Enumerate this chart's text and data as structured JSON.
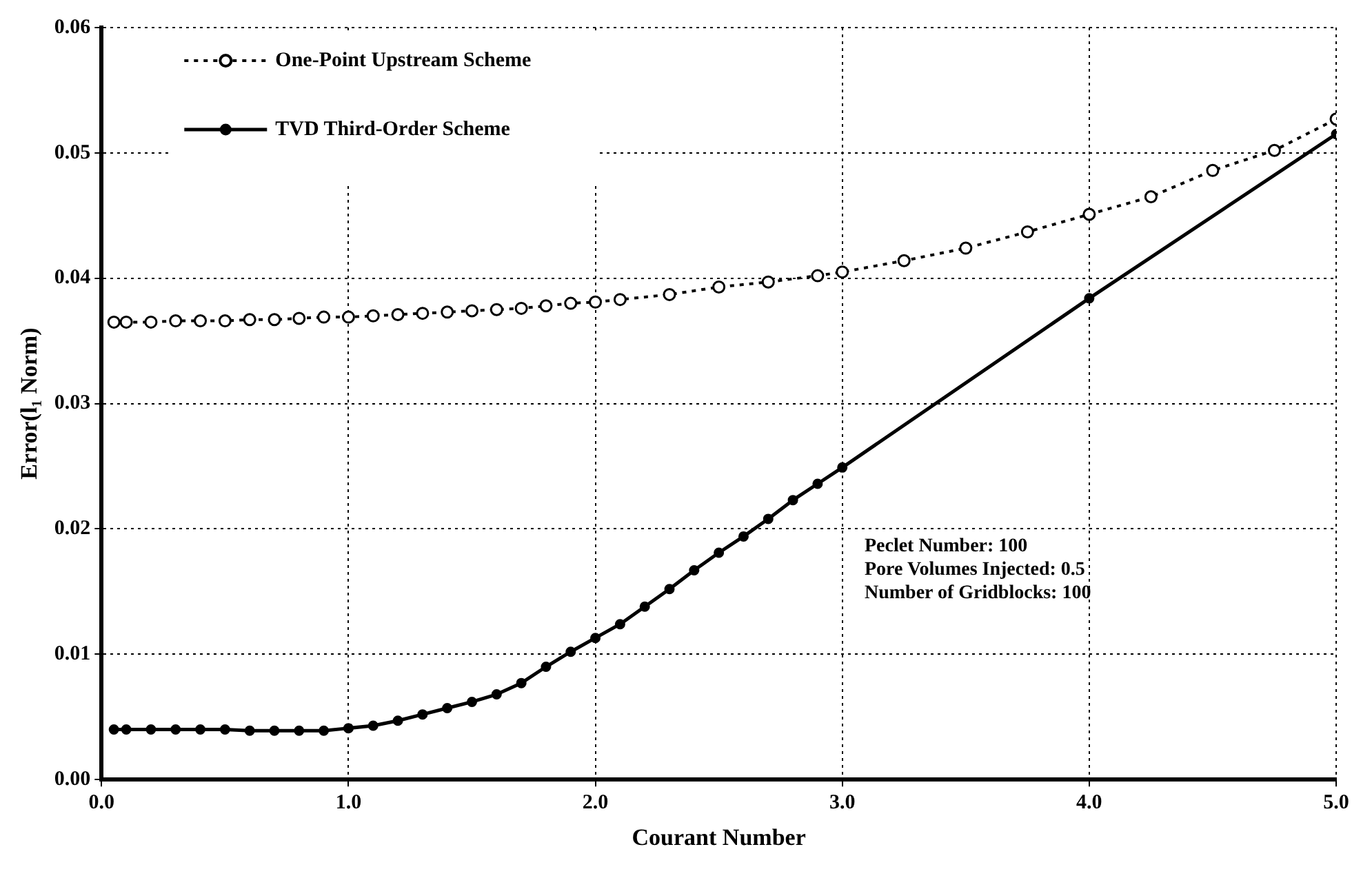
{
  "chart_data": {
    "type": "line",
    "xlabel": "Courant Number",
    "ylabel": "Error(l₁ Norm)",
    "xlim": [
      0,
      5
    ],
    "xticks": [
      {
        "value": 0,
        "label": "0.0"
      },
      {
        "value": 1,
        "label": "1.0"
      },
      {
        "value": 2,
        "label": "2.0"
      },
      {
        "value": 3,
        "label": "3.0"
      },
      {
        "value": 4,
        "label": "4.0"
      },
      {
        "value": 5,
        "label": "5.0"
      }
    ],
    "ylim": [
      0,
      0.06
    ],
    "yticks": [
      {
        "value": 0,
        "label": "0.00"
      },
      {
        "value": 0.01,
        "label": "0.01"
      },
      {
        "value": 0.02,
        "label": "0.02"
      },
      {
        "value": 0.03,
        "label": "0.03"
      },
      {
        "value": 0.04,
        "label": "0.04"
      },
      {
        "value": 0.05,
        "label": "0.05"
      },
      {
        "value": 0.06,
        "label": "0.06"
      }
    ],
    "grid": true,
    "legend": "top left",
    "marker": "circle",
    "series": [
      {
        "name": "One-Point Upstream Scheme",
        "color": "#000000",
        "line_style": "dotted",
        "x": [
          0.05,
          0.1,
          0.2,
          0.3,
          0.4,
          0.5,
          0.6,
          0.7,
          0.8,
          0.9,
          1.0,
          1.1,
          1.2,
          1.3,
          1.4,
          1.5,
          1.6,
          1.7,
          1.8,
          1.9,
          2.0,
          2.1,
          2.3,
          2.5,
          2.7,
          2.9,
          3.0,
          3.25,
          3.5,
          3.75,
          4.0,
          4.25,
          4.5,
          4.75,
          5.0
        ],
        "values": [
          0.0365,
          0.0365,
          0.0365,
          0.0366,
          0.0366,
          0.0366,
          0.0367,
          0.0367,
          0.0368,
          0.0369,
          0.0369,
          0.037,
          0.0371,
          0.0372,
          0.0373,
          0.0374,
          0.0375,
          0.0376,
          0.0378,
          0.038,
          0.0381,
          0.0383,
          0.0387,
          0.0393,
          0.0397,
          0.0402,
          0.0405,
          0.0414,
          0.0424,
          0.0437,
          0.0451,
          0.0465,
          0.0486,
          0.0502,
          0.0527
        ]
      },
      {
        "name": "TVD Third-Order Scheme",
        "color": "#000000",
        "line_style": "solid",
        "x": [
          0.05,
          0.1,
          0.2,
          0.3,
          0.4,
          0.5,
          0.6,
          0.7,
          0.8,
          0.9,
          1.0,
          1.1,
          1.2,
          1.3,
          1.4,
          1.5,
          1.6,
          1.7,
          1.8,
          1.9,
          2.0,
          2.1,
          2.2,
          2.3,
          2.4,
          2.5,
          2.6,
          2.7,
          2.8,
          2.9,
          3.0,
          4.0,
          5.0
        ],
        "values": [
          0.004,
          0.004,
          0.004,
          0.004,
          0.004,
          0.004,
          0.0039,
          0.0039,
          0.0039,
          0.0039,
          0.0041,
          0.0043,
          0.0047,
          0.0052,
          0.0057,
          0.0062,
          0.0068,
          0.0077,
          0.009,
          0.0102,
          0.0113,
          0.0124,
          0.0138,
          0.0152,
          0.0167,
          0.0181,
          0.0194,
          0.0208,
          0.0223,
          0.0236,
          0.0249,
          0.0384,
          0.0515
        ]
      }
    ],
    "annotations": [
      "Peclet Number: 100",
      "Pore Volumes Injected: 0.5",
      "Number of Gridblocks: 100"
    ]
  }
}
